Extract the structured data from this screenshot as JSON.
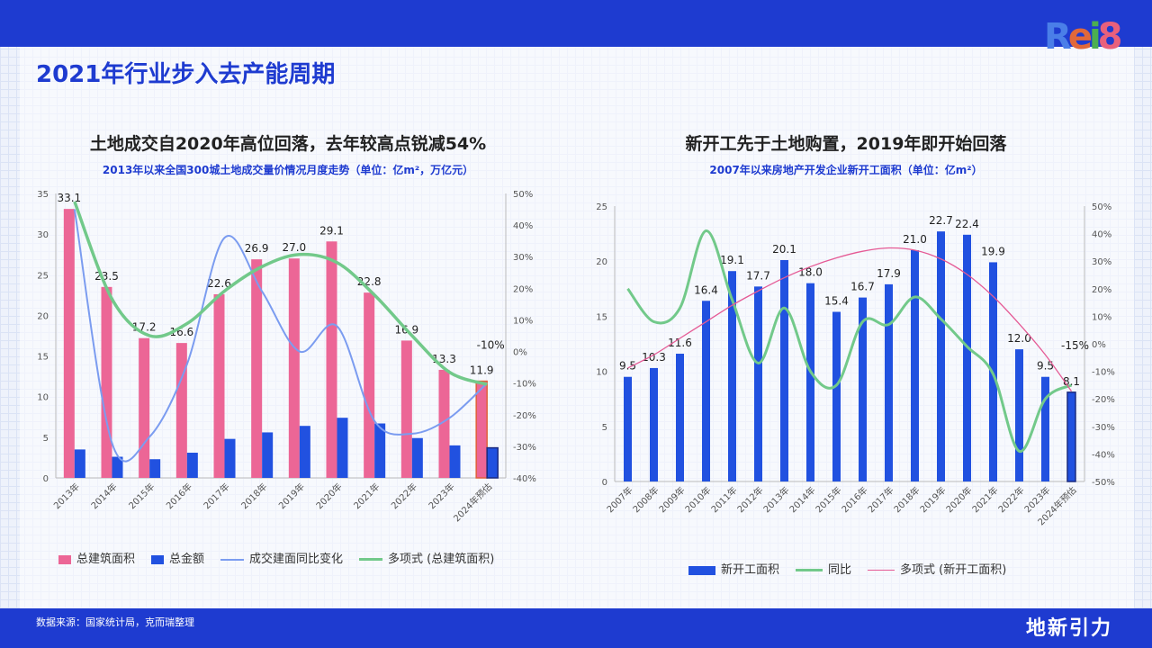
{
  "header": {
    "title": "2021年行业步入去产能周期",
    "logo_text": "Rei8"
  },
  "footer": {
    "source": "数据来源：国家统计局，克而瑞整理",
    "brand": "地新引力"
  },
  "colors": {
    "pink": "#ec6696",
    "blue": "#2151e0",
    "lightblue": "#7b9cf0",
    "green": "#72c98a",
    "trend_pink": "#e55a95",
    "brand_blue": "#1e3bd0"
  },
  "chart_data": [
    {
      "type": "bar",
      "title": "土地成交自2020年高位回落，去年较高点锐减54%",
      "subtitle": "2013年以来全国300城土地成交量价情况月度走势（单位：亿m²，万亿元）",
      "categories": [
        "2013年",
        "2014年",
        "2015年",
        "2016年",
        "2017年",
        "2018年",
        "2019年",
        "2020年",
        "2021年",
        "2022年",
        "2023年",
        "2024年预估"
      ],
      "ylim": [
        0,
        35
      ],
      "yticks": [
        "0",
        "5",
        "10",
        "15",
        "20",
        "25",
        "30",
        "35"
      ],
      "y2lim": [
        -40,
        50
      ],
      "y2ticks": [
        "-40%",
        "-30%",
        "-20%",
        "-10%",
        "0%",
        "10%",
        "20%",
        "30%",
        "40%",
        "50%"
      ],
      "series": [
        {
          "name": "总建筑面积",
          "kind": "bar",
          "values": [
            33.1,
            23.5,
            17.2,
            16.6,
            22.6,
            26.9,
            27.0,
            29.1,
            22.8,
            16.9,
            13.3,
            11.9
          ],
          "labels": [
            "33.1",
            "23.5",
            "17.2",
            "16.6",
            "22.6",
            "26.9",
            "27.0",
            "29.1",
            "22.8",
            "16.9",
            "13.3",
            "11.9"
          ]
        },
        {
          "name": "总金额",
          "kind": "bar",
          "values": [
            3.5,
            2.6,
            2.3,
            3.1,
            4.8,
            5.6,
            6.4,
            7.4,
            6.7,
            4.9,
            4.0,
            3.7
          ]
        },
        {
          "name": "成交建面同比变化",
          "kind": "line",
          "axis": "right",
          "values": [
            45,
            -29,
            -27,
            -4,
            36,
            19,
            0,
            8,
            -22,
            -26,
            -21,
            -10
          ],
          "end_label": "-10%"
        },
        {
          "name": "多项式 (总建筑面积)",
          "kind": "trend",
          "values": [
            34,
            22,
            17.5,
            19,
            23,
            26,
            27.5,
            26.5,
            22.5,
            17.5,
            13,
            11.5
          ]
        }
      ],
      "grid": false,
      "legend": "bottom"
    },
    {
      "type": "bar",
      "title": "新开工先于土地购置，2019年即开始回落",
      "subtitle": "2007年以来房地产开发企业新开工面积（单位：亿m²）",
      "categories": [
        "2007年",
        "2008年",
        "2009年",
        "2010年",
        "2011年",
        "2012年",
        "2013年",
        "2014年",
        "2015年",
        "2016年",
        "2017年",
        "2018年",
        "2019年",
        "2020年",
        "2021年",
        "2022年",
        "2023年",
        "2024年预估"
      ],
      "ylim": [
        0,
        25
      ],
      "yticks": [
        "0",
        "5",
        "10",
        "15",
        "20",
        "25"
      ],
      "y2lim": [
        -50,
        50
      ],
      "y2ticks": [
        "-50%",
        "-40%",
        "-30%",
        "-20%",
        "-10%",
        "0%",
        "10%",
        "20%",
        "30%",
        "40%",
        "50%"
      ],
      "series": [
        {
          "name": "新开工面积",
          "kind": "bar",
          "values": [
            9.5,
            10.3,
            11.6,
            16.4,
            19.1,
            17.7,
            20.1,
            18.0,
            15.4,
            16.7,
            17.9,
            21.0,
            22.7,
            22.4,
            19.9,
            12.0,
            9.5,
            8.1
          ],
          "labels": [
            "9.5",
            "10.3",
            "11.6",
            "16.4",
            "19.1",
            "17.7",
            "20.1",
            "18.0",
            "15.4",
            "16.7",
            "17.9",
            "21.0",
            "22.7",
            "22.4",
            "19.9",
            "12.0",
            "9.5",
            "8.1"
          ]
        },
        {
          "name": "同比",
          "kind": "line",
          "axis": "right",
          "values": [
            20,
            8,
            13,
            41,
            16,
            -7,
            13,
            -10,
            -15,
            8,
            7,
            17,
            9,
            -1,
            -11,
            -39,
            -20,
            -15
          ],
          "end_label": "-15%"
        },
        {
          "name": "多项式 (新开工面积)",
          "kind": "trend",
          "values": [
            10.3,
            11.5,
            13,
            14.5,
            16,
            17.3,
            18.5,
            19.5,
            20.3,
            20.9,
            21.2,
            21,
            20.2,
            18.8,
            16.8,
            14.3,
            11.5,
            8.2
          ]
        }
      ],
      "grid": false,
      "legend": "bottom"
    }
  ]
}
